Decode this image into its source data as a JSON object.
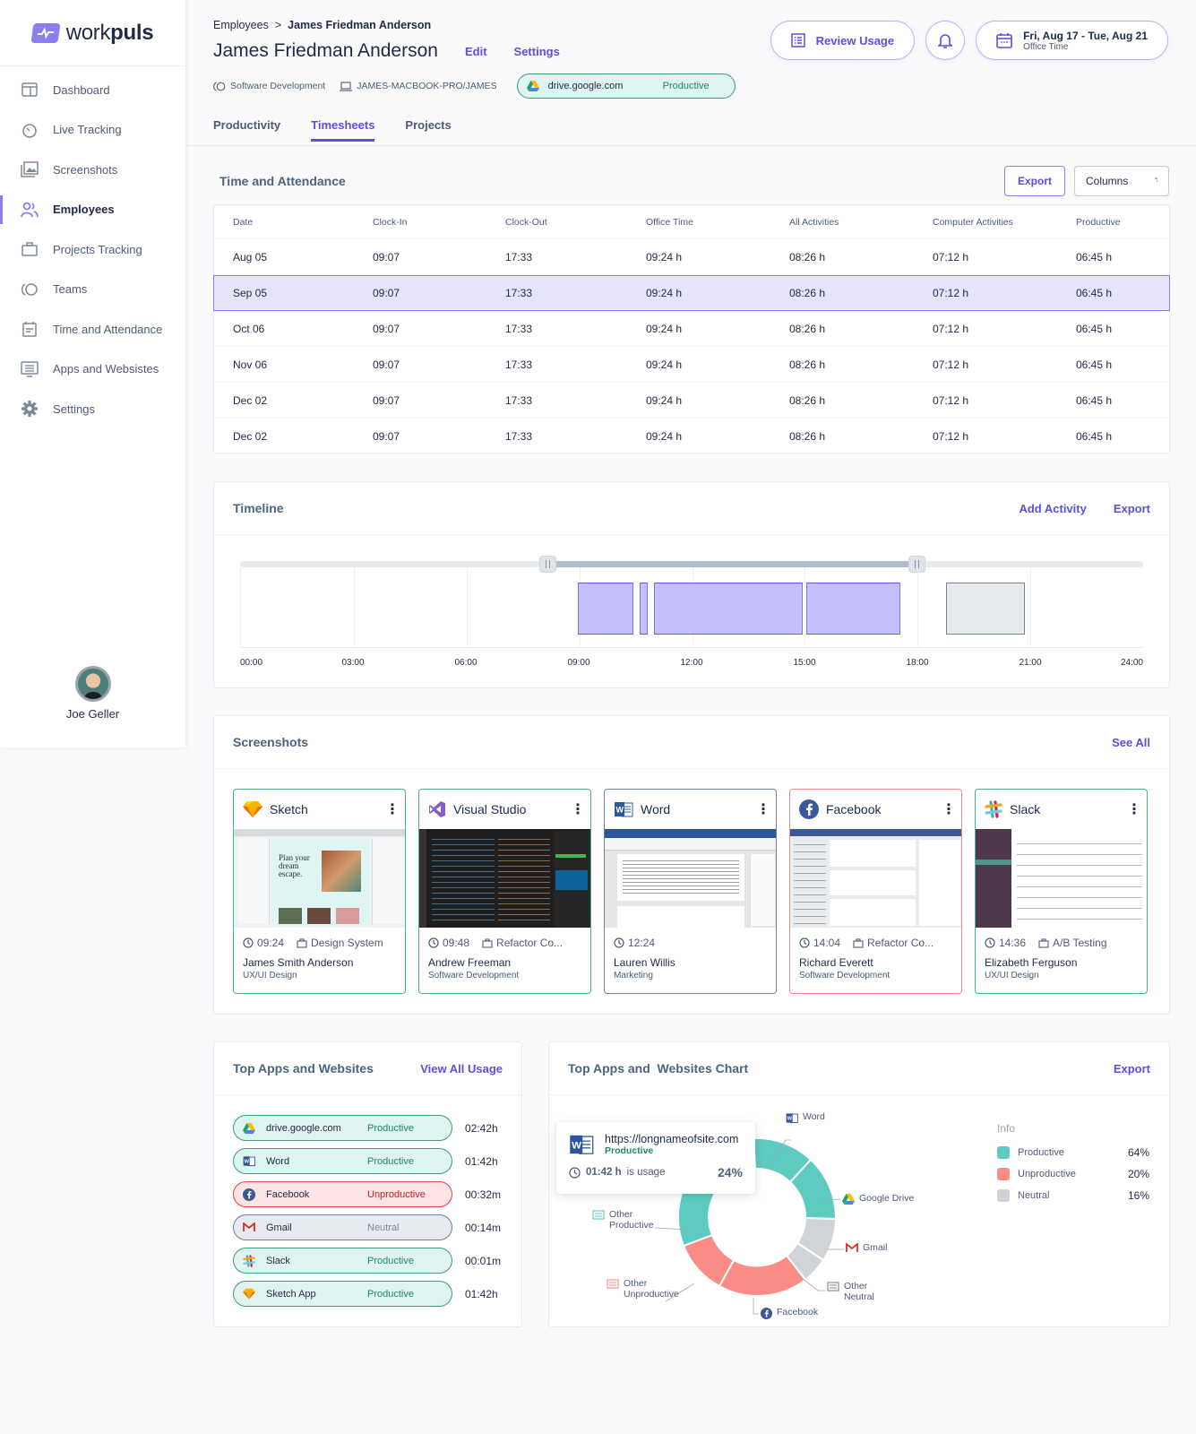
{
  "sidebar": {
    "logo": {
      "light": "work",
      "bold": "puls"
    },
    "items": [
      {
        "label": "Dashboard",
        "icon": "dashboard-icon",
        "active": false
      },
      {
        "label": "Live Tracking",
        "icon": "stopwatch-icon",
        "active": false
      },
      {
        "label": "Screenshots",
        "icon": "images-icon",
        "active": false
      },
      {
        "label": "Employees",
        "icon": "users-icon",
        "active": true
      },
      {
        "label": "Projects Tracking",
        "icon": "briefcase-icon",
        "active": false
      },
      {
        "label": "Teams",
        "icon": "teams-icon",
        "active": false
      },
      {
        "label": "Time and Attendance",
        "icon": "calendar-icon",
        "active": false
      },
      {
        "label": "Apps and Websistes",
        "icon": "monitor-list-icon",
        "active": false
      },
      {
        "label": "Settings",
        "icon": "gear-icon",
        "active": false
      }
    ],
    "user": {
      "name": "Joe Geller"
    }
  },
  "header": {
    "breadcrumb": {
      "parent": "Employees",
      "separator": ">",
      "current": "James Friedman Anderson"
    },
    "title": "James Friedman Anderson",
    "edit_label": "Edit",
    "settings_label": "Settings",
    "team": "Software Development",
    "device": "JAMES-MACBOOK-PRO/JAMES",
    "current_app": {
      "name": "drive.google.com",
      "status": "Productive"
    },
    "review_usage_label": "Review Usage",
    "date_range": "Fri, Aug 17 - Tue, Aug 21",
    "date_sub": "Office Time"
  },
  "tabs": [
    {
      "label": "Productivity",
      "active": false
    },
    {
      "label": "Timesheets",
      "active": true
    },
    {
      "label": "Projects",
      "active": false
    }
  ],
  "attendance": {
    "title": "Time and Attendance",
    "export_label": "Export",
    "columns_label": "Columns",
    "headers": [
      "Date",
      "Clock-In",
      "Clock-Out",
      "Office Time",
      "All Activities",
      "Computer Activities",
      "Productive"
    ],
    "rows": [
      [
        "Aug 05",
        "09:07",
        "17:33",
        "09:24 h",
        "08:26 h",
        "07:12 h",
        "06:45 h"
      ],
      [
        "Sep 05",
        "09:07",
        "17:33",
        "09:24 h",
        "08:26 h",
        "07:12 h",
        "06:45 h"
      ],
      [
        "Oct 06",
        "09:07",
        "17:33",
        "09:24 h",
        "08:26 h",
        "07:12 h",
        "06:45 h"
      ],
      [
        "Nov 06",
        "09:07",
        "17:33",
        "09:24 h",
        "08:26 h",
        "07:12 h",
        "06:45 h"
      ],
      [
        "Dec 02",
        "09:07",
        "17:33",
        "09:24 h",
        "08:26 h",
        "07:12 h",
        "06:45 h"
      ],
      [
        "Dec 02",
        "09:07",
        "17:33",
        "09:24 h",
        "08:26 h",
        "07:12 h",
        "06:45 h"
      ]
    ],
    "selected_row": 1
  },
  "timeline": {
    "title": "Timeline",
    "add_activity_label": "Add Activity",
    "export_label": "Export",
    "ticks": [
      "00:00",
      "03:00",
      "06:00",
      "09:00",
      "12:00",
      "15:00",
      "18:00",
      "21:00",
      "24:00"
    ],
    "range": {
      "start_h": 8.2,
      "end_h": 18.0
    },
    "blocks": [
      {
        "start_h": 8.95,
        "end_h": 10.45,
        "type": "active"
      },
      {
        "start_h": 10.6,
        "end_h": 10.82,
        "type": "active"
      },
      {
        "start_h": 10.98,
        "end_h": 14.95,
        "type": "active"
      },
      {
        "start_h": 15.05,
        "end_h": 17.55,
        "type": "active"
      },
      {
        "start_h": 18.75,
        "end_h": 20.85,
        "type": "idle"
      }
    ]
  },
  "screenshots": {
    "title": "Screenshots",
    "see_all_label": "See All",
    "items": [
      {
        "app": "Sketch",
        "icon": "sketch-icon",
        "time": "09:24",
        "project": "Design System",
        "user": "James Smith Anderson",
        "team": "UX/UI Design",
        "status": "productive"
      },
      {
        "app": "Visual Studio",
        "icon": "visual-studio-icon",
        "time": "09:48",
        "project": "Refactor Co...",
        "user": "Andrew Freeman",
        "team": "Software Development",
        "status": "productive"
      },
      {
        "app": "Word",
        "icon": "word-icon",
        "time": "12:24",
        "project": "",
        "user": "Lauren Willis",
        "team": "Marketing",
        "status": "neutral"
      },
      {
        "app": "Facebook",
        "icon": "facebook-icon",
        "time": "14:04",
        "project": "Refactor Co...",
        "user": "Richard Everett",
        "team": "Software Development",
        "status": "unproductive"
      },
      {
        "app": "Slack",
        "icon": "slack-icon",
        "time": "14:36",
        "project": "A/B Testing",
        "user": "Elizabeth Ferguson",
        "team": "UX/UI Design",
        "status": "productive"
      }
    ]
  },
  "top_apps": {
    "title": "Top Apps and Websites",
    "view_all_label": "View All Usage",
    "items": [
      {
        "name": "drive.google.com",
        "icon": "google-drive-icon",
        "status": "Productive",
        "kind": "good",
        "time": "02:42h"
      },
      {
        "name": "Word",
        "icon": "word-icon",
        "status": "Productive",
        "kind": "good",
        "time": "01:42h"
      },
      {
        "name": "Facebook",
        "icon": "facebook-icon",
        "status": "Unproductive",
        "kind": "bad",
        "time": "00:32m"
      },
      {
        "name": "Gmail",
        "icon": "gmail-icon",
        "status": "Neutral",
        "kind": "neu",
        "time": "00:14m"
      },
      {
        "name": "Slack",
        "icon": "slack-icon",
        "status": "Productive",
        "kind": "good",
        "time": "00:01m"
      },
      {
        "name": "Sketch App",
        "icon": "sketch-icon",
        "status": "Productive",
        "kind": "good",
        "time": "01:42h"
      }
    ]
  },
  "apps_chart": {
    "title": "Top Apps and  Websites Chart",
    "export_label": "Export",
    "tooltip": {
      "url": "https://longnameofsite.com",
      "status": "Productive",
      "time": "01:42 h",
      "suffix": "is usage",
      "percent": "24%"
    },
    "callouts": [
      "Word",
      "Google Drive",
      "Gmail",
      "Other Neutral",
      "Facebook",
      "Other Unproductive",
      "Other Productive"
    ],
    "legend_title": "Info",
    "legend": [
      {
        "label": "Productive",
        "value": "64%",
        "color": "#5ecbc0"
      },
      {
        "label": "Unproductive",
        "value": "20%",
        "color": "#fb8c85"
      },
      {
        "label": "Neutral",
        "value": "16%",
        "color": "#d0d4d9"
      }
    ]
  },
  "colors": {
    "accent": "#5b4ee6",
    "productive": "#5ecbc0",
    "unproductive": "#fb8c85",
    "neutral": "#d0d4d9"
  }
}
